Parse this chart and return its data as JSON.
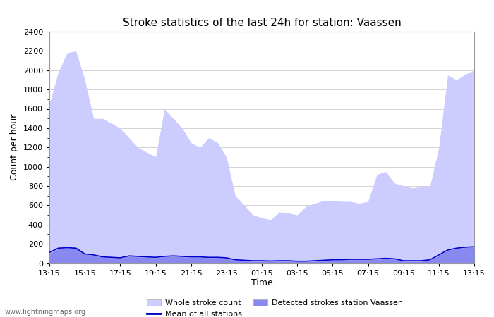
{
  "title": "Stroke statistics of the last 24h for station: Vaassen",
  "xlabel": "Time",
  "ylabel": "Count per hour",
  "watermark": "www.lightningmaps.org",
  "x_labels": [
    "13:15",
    "15:15",
    "17:15",
    "19:15",
    "21:15",
    "23:15",
    "01:15",
    "03:15",
    "05:15",
    "07:15",
    "09:15",
    "11:15",
    "13:15"
  ],
  "ylim": [
    0,
    2400
  ],
  "yticks": [
    0,
    200,
    400,
    600,
    800,
    1000,
    1200,
    1400,
    1600,
    1800,
    2000,
    2200,
    2400
  ],
  "whole_stroke_color": "#ccccff",
  "detected_stroke_color": "#8888ee",
  "mean_line_color": "#0000cc",
  "background_color": "#ffffff",
  "legend_whole": "Whole stroke count",
  "legend_detected": "Detected strokes station Vaassen",
  "legend_mean": "Mean of all stations",
  "whole_stroke_x": [
    0,
    1,
    2,
    3,
    4,
    5,
    6,
    7,
    8,
    9,
    10,
    11,
    12,
    13,
    14,
    15,
    16,
    17,
    18,
    19,
    20,
    21,
    22,
    23,
    24,
    25,
    26,
    27,
    28,
    29,
    30,
    31,
    32,
    33,
    34,
    35,
    36,
    37,
    38,
    39,
    40,
    41,
    42,
    43,
    44,
    45,
    46,
    47,
    48
  ],
  "whole_stroke_y": [
    1650,
    1980,
    2180,
    2200,
    1900,
    1500,
    1500,
    1450,
    1400,
    1300,
    1200,
    1150,
    1100,
    1600,
    1500,
    1400,
    1250,
    1200,
    1300,
    1250,
    1100,
    700,
    600,
    500,
    470,
    450,
    530,
    520,
    500,
    590,
    620,
    650,
    650,
    640,
    640,
    620,
    640,
    920,
    950,
    830,
    800,
    780,
    790,
    800,
    1200,
    1950,
    1900,
    1960,
    2000
  ],
  "detected_stroke_x": [
    0,
    1,
    2,
    3,
    4,
    5,
    6,
    7,
    8,
    9,
    10,
    11,
    12,
    13,
    14,
    15,
    16,
    17,
    18,
    19,
    20,
    21,
    22,
    23,
    24,
    25,
    26,
    27,
    28,
    29,
    30,
    31,
    32,
    33,
    34,
    35,
    36,
    37,
    38,
    39,
    40,
    41,
    42,
    43,
    44,
    45,
    46,
    47,
    48
  ],
  "detected_stroke_y": [
    100,
    150,
    155,
    150,
    90,
    80,
    60,
    55,
    50,
    70,
    65,
    60,
    55,
    65,
    70,
    65,
    60,
    60,
    55,
    55,
    50,
    30,
    25,
    20,
    20,
    18,
    20,
    20,
    15,
    15,
    20,
    25,
    30,
    30,
    35,
    35,
    35,
    40,
    45,
    40,
    20,
    20,
    20,
    30,
    80,
    130,
    150,
    160,
    165
  ],
  "mean_line_x": [
    0,
    1,
    2,
    3,
    4,
    5,
    6,
    7,
    8,
    9,
    10,
    11,
    12,
    13,
    14,
    15,
    16,
    17,
    18,
    19,
    20,
    21,
    22,
    23,
    24,
    25,
    26,
    27,
    28,
    29,
    30,
    31,
    32,
    33,
    34,
    35,
    36,
    37,
    38,
    39,
    40,
    41,
    42,
    43,
    44,
    45,
    46,
    47,
    48
  ],
  "mean_line_y": [
    110,
    155,
    160,
    155,
    95,
    85,
    65,
    60,
    55,
    75,
    70,
    65,
    60,
    70,
    75,
    70,
    65,
    65,
    60,
    60,
    55,
    35,
    30,
    25,
    25,
    22,
    25,
    25,
    20,
    20,
    25,
    30,
    35,
    35,
    40,
    40,
    40,
    45,
    50,
    45,
    25,
    25,
    25,
    35,
    85,
    135,
    155,
    165,
    170
  ],
  "fig_width": 7.0,
  "fig_height": 4.5,
  "dpi": 100
}
